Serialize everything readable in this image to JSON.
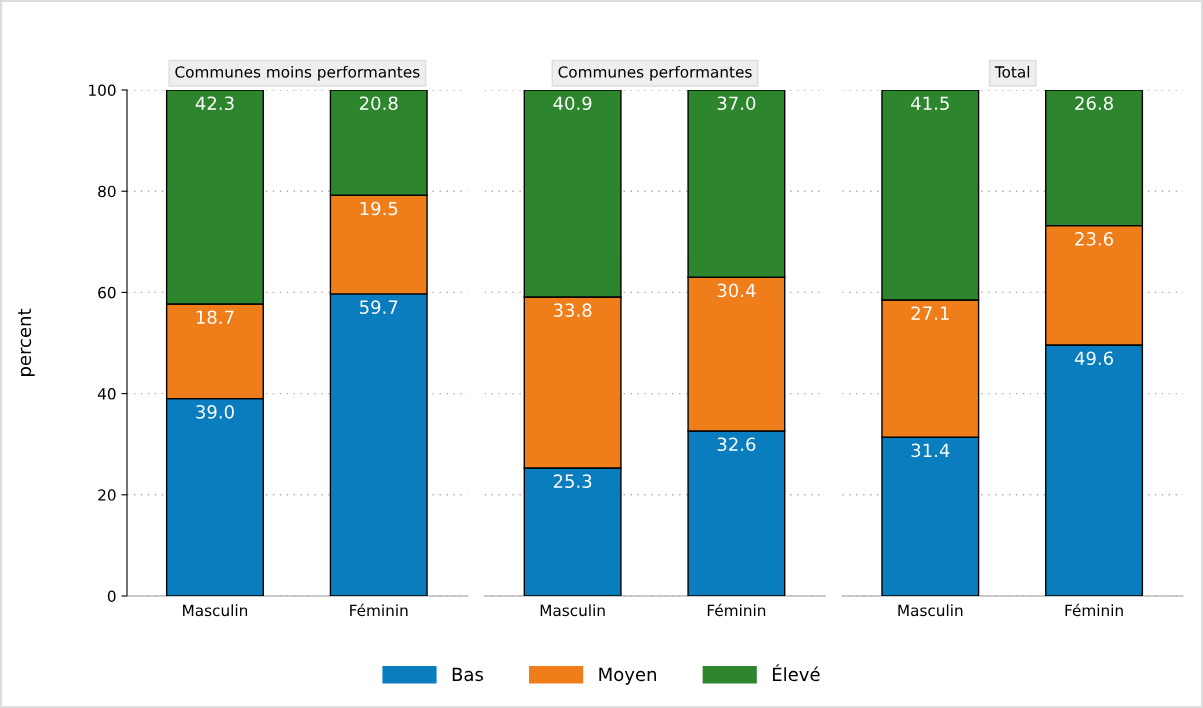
{
  "chart_data": [
    {
      "type": "bar",
      "stacked": true,
      "title": "Communes moins performantes",
      "ylabel": "percent",
      "categories": [
        "Masculin",
        "Féminin"
      ],
      "ylim": [
        0,
        100
      ],
      "yticks": [
        0,
        20,
        40,
        60,
        80,
        100
      ],
      "grid": "y",
      "legend": "bottom",
      "series": [
        {
          "name": "Bas",
          "color": "#0a7dbe",
          "values": [
            39.0,
            59.7
          ],
          "value_labels": [
            "39.0",
            "59.7"
          ]
        },
        {
          "name": "Moyen",
          "color": "#ef7d1a",
          "values": [
            18.7,
            19.5
          ],
          "value_labels": [
            "18.7",
            "19.5"
          ]
        },
        {
          "name": "Élevé",
          "color": "#2d862d",
          "values": [
            42.3,
            20.8
          ],
          "value_labels": [
            "42.3",
            "20.8"
          ]
        }
      ]
    },
    {
      "type": "bar",
      "stacked": true,
      "title": "Communes performantes",
      "categories": [
        "Masculin",
        "Féminin"
      ],
      "ylim": [
        0,
        100
      ],
      "yticks": [
        0,
        20,
        40,
        60,
        80,
        100
      ],
      "grid": "y",
      "tick_labels": "x",
      "series": [
        {
          "color": "#0a7dbe",
          "values": [
            25.3,
            32.6
          ],
          "value_labels": [
            "25.3",
            "32.6"
          ]
        },
        {
          "color": "#ef7d1a",
          "values": [
            33.8,
            30.4
          ],
          "value_labels": [
            "33.8",
            "30.4"
          ]
        },
        {
          "color": "#2d862d",
          "values": [
            40.9,
            37.0
          ],
          "value_labels": [
            "40.9",
            "37.0"
          ]
        }
      ]
    },
    {
      "type": "bar",
      "stacked": true,
      "title": "Total",
      "categories": [
        "Masculin",
        "Féminin"
      ],
      "ylim": [
        0,
        100
      ],
      "yticks": [
        0,
        20,
        40,
        60,
        80,
        100
      ],
      "grid": "y",
      "tick_labels": "x",
      "series": [
        {
          "color": "#0a7dbe",
          "values": [
            31.4,
            49.6
          ],
          "value_labels": [
            "31.4",
            "49.6"
          ]
        },
        {
          "color": "#ef7d1a",
          "values": [
            27.1,
            23.6
          ],
          "value_labels": [
            "27.1",
            "23.6"
          ]
        },
        {
          "color": "#2d862d",
          "values": [
            41.5,
            26.8
          ],
          "value_labels": [
            "41.5",
            "26.8"
          ]
        }
      ]
    }
  ]
}
